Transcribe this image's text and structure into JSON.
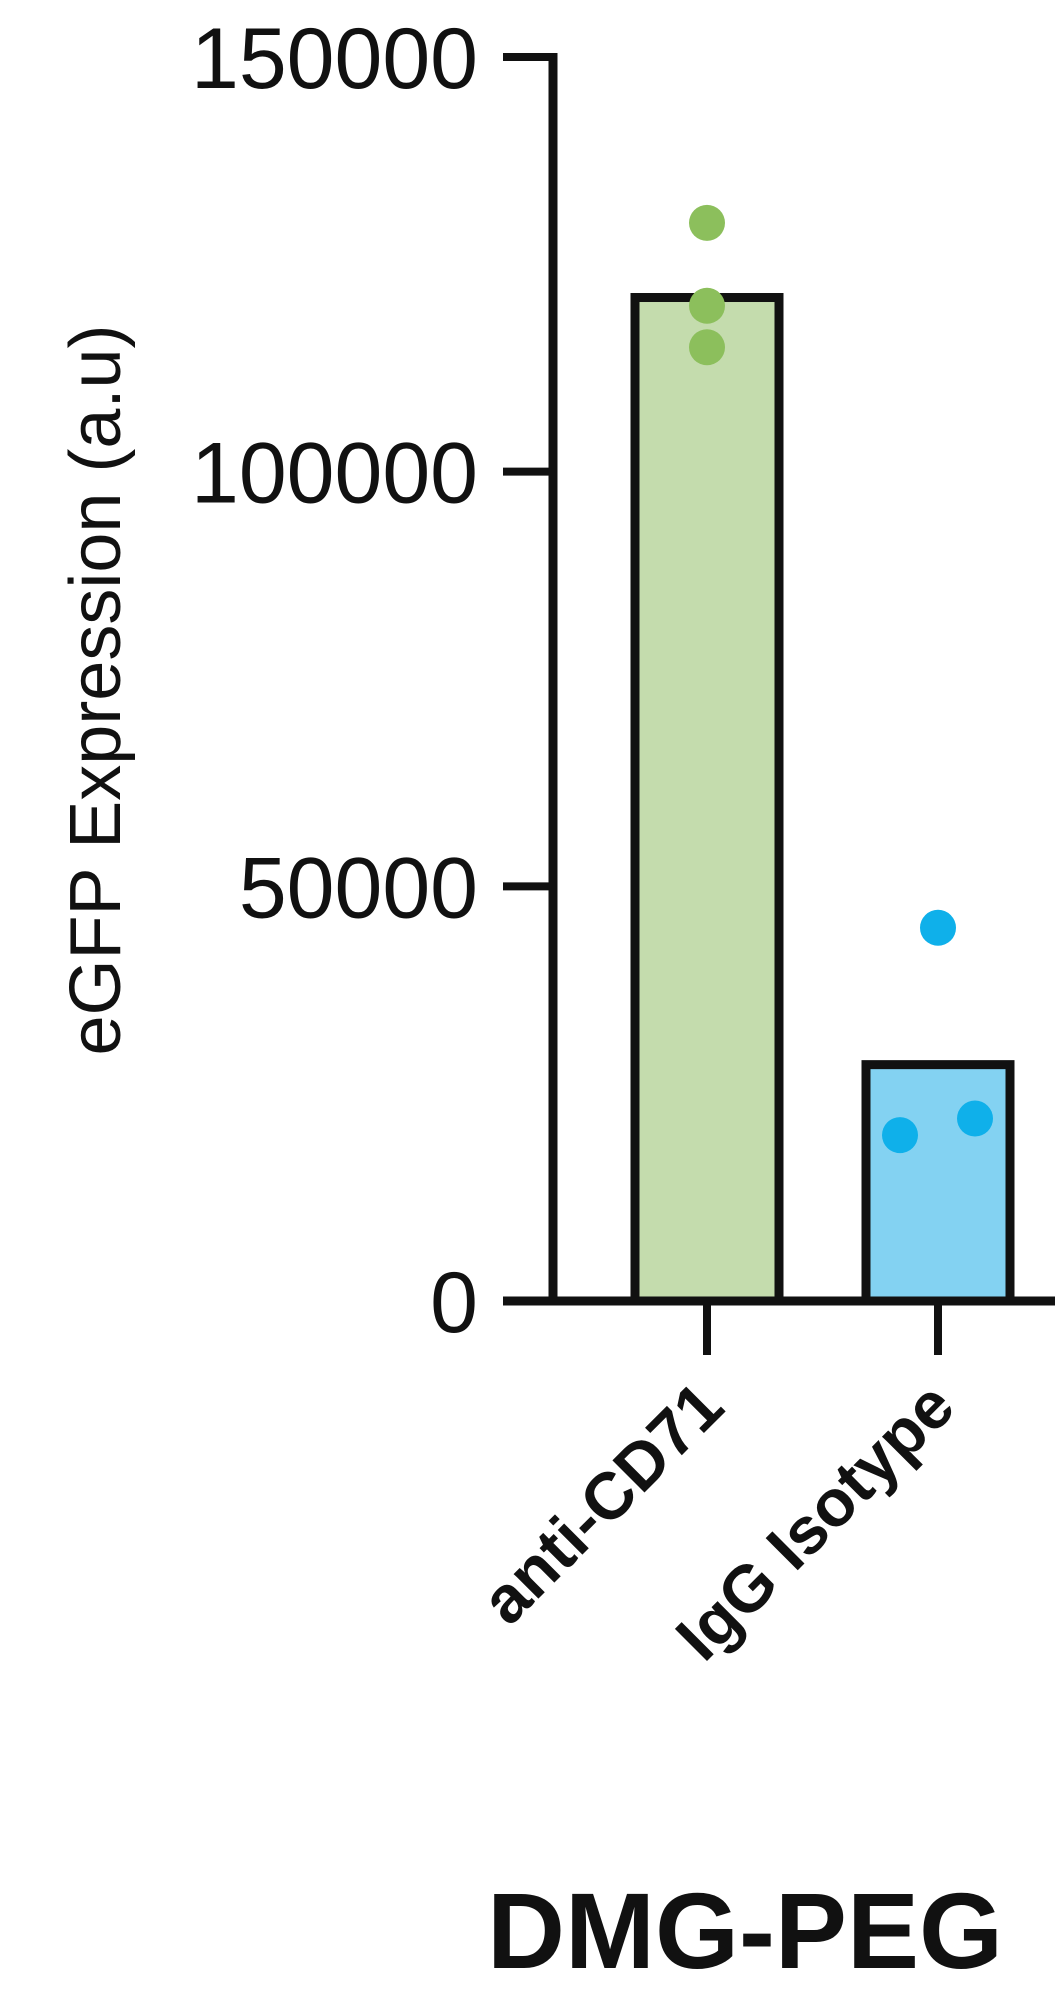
{
  "chart_data": {
    "type": "bar",
    "title": "DMG-PEG",
    "ylabel": "eGFP Expression (a.u)",
    "xlabel": "",
    "ylim": [
      0,
      150000
    ],
    "yticks": [
      0,
      50000,
      100000,
      150000
    ],
    "ytick_labels": [
      "0",
      "50000",
      "100000",
      "150000"
    ],
    "grid": false,
    "categories": [
      "anti-CD71",
      "IgG Isotype"
    ],
    "values": [
      121000,
      28500
    ],
    "points": [
      [
        130000,
        120000,
        115000
      ],
      [
        45000,
        20000,
        22000
      ]
    ],
    "colors": {
      "anti-CD71": {
        "fill": "#c4dcad",
        "point": "#8cbf5c"
      },
      "IgG Isotype": {
        "fill": "#83d2f2",
        "point": "#0fb0ea"
      },
      "axis": "#111111"
    }
  }
}
